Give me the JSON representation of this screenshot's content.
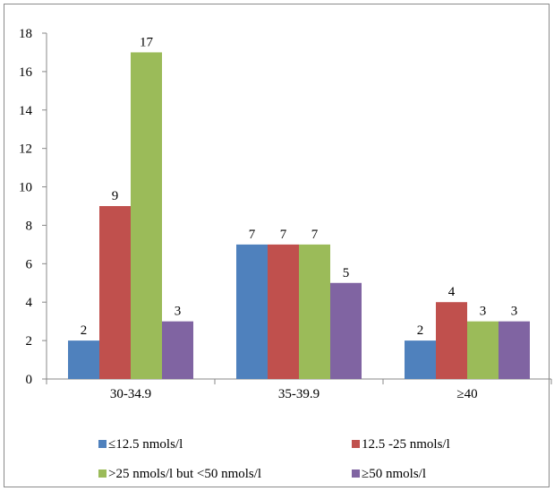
{
  "chart_data": {
    "type": "bar",
    "categories": [
      "30-34.9",
      "35-39.9",
      "≥40"
    ],
    "series": [
      {
        "name": "≤12.5 nmols/l",
        "color": "#4f81bd",
        "values": [
          2,
          7,
          2
        ]
      },
      {
        "name": "12.5 -25 nmols/l",
        "color": "#c0504d",
        "values": [
          9,
          7,
          4
        ]
      },
      {
        "name": ">25 nmols/l but <50 nmols/l",
        "color": "#9bbb59",
        "values": [
          17,
          7,
          3
        ]
      },
      {
        "name": "≥50 nmols/l",
        "color": "#8064a2",
        "values": [
          3,
          5,
          3
        ]
      }
    ],
    "yticks": [
      "0",
      "2",
      "4",
      "6",
      "8",
      "10",
      "12",
      "14",
      "16",
      "18"
    ],
    "ylim": [
      0,
      18
    ],
    "grid": false,
    "legend_position": "bottom"
  }
}
